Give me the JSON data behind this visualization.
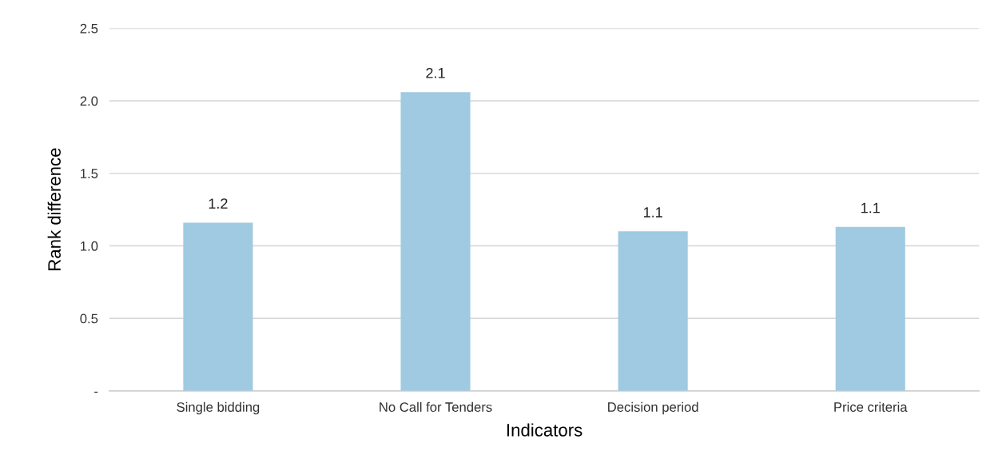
{
  "chart_data": {
    "type": "bar",
    "xlabel": "Indicators",
    "ylabel": "Rank difference",
    "categories": [
      "Single bidding",
      "No Call for Tenders",
      "Decision period",
      "Price criteria"
    ],
    "values": [
      1.16,
      2.06,
      1.1,
      1.13
    ],
    "value_labels": [
      "1.2",
      "2.1",
      "1.1",
      "1.1"
    ],
    "color": "#9fcae1",
    "ylim": [
      0,
      2.5
    ],
    "yticks": [
      {
        "value": 0,
        "label": "-"
      },
      {
        "value": 0.5,
        "label": "0.5"
      },
      {
        "value": 1,
        "label": "1.0"
      },
      {
        "value": 1.5,
        "label": "1.5"
      },
      {
        "value": 2,
        "label": "2.0"
      },
      {
        "value": 2.5,
        "label": "2.5"
      }
    ],
    "grid": "y",
    "legend": false
  }
}
